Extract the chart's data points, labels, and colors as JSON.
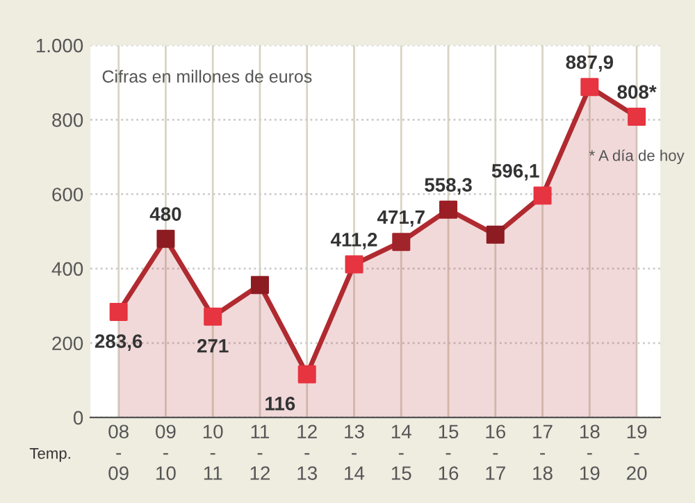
{
  "chart_data": {
    "type": "area",
    "xlabel": "Temp.",
    "categories": [
      "08\n-\n09",
      "09\n-\n10",
      "10\n-\n11",
      "11\n-\n12",
      "12\n-\n13",
      "13\n-\n14",
      "14\n-\n15",
      "15\n-\n16",
      "16\n-\n17",
      "17\n-\n18",
      "18\n-\n19",
      "19\n-\n20"
    ],
    "series": [
      {
        "color": "#b02a30",
        "values": [
          283.6,
          480,
          271,
          356,
          116,
          411.2,
          471.7,
          558.3,
          491,
          596.1,
          887.9,
          808
        ],
        "colors": [
          "#e63440",
          "#8c1c22",
          "#e63440",
          "#8c1c22",
          "#e63440",
          "#e63440",
          "#a0242a",
          "#9a1e24",
          "#8c1c22",
          "#e63440",
          "#e63440",
          "#e63440"
        ],
        "value_labels": [
          "283,6",
          "480",
          "271",
          null,
          "116",
          "411,2",
          "471,7",
          "558,3",
          null,
          "596,1",
          "887,9",
          "808*"
        ]
      }
    ],
    "ylim": [
      0,
      1000
    ],
    "yticks": [
      0,
      200,
      400,
      600,
      800,
      {
        "value": 1000,
        "label": "1.000"
      }
    ],
    "grid": true,
    "marker": "square",
    "annotations": [
      "Cifras en millones de euros",
      "* A día de hoy"
    ]
  }
}
